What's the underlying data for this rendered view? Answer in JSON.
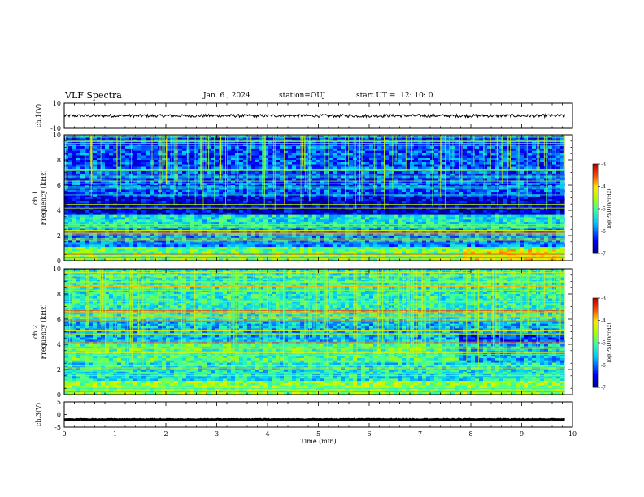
{
  "header": {
    "title": "VLF Spectra",
    "date": "Jan. 6 , 2024",
    "station": "station=OUJ",
    "start": "start UT =  12: 10: 0"
  },
  "chart_data": [
    {
      "type": "line",
      "title": "",
      "ylabel": "ch.1(V)",
      "ylim": [
        -10,
        10
      ],
      "yticks": [
        10,
        -10
      ],
      "xlim": [
        0,
        10
      ],
      "description_level": 0,
      "series": [
        {
          "values_mean": 0,
          "noise_amplitude": 1.2
        }
      ]
    },
    {
      "type": "heatmap",
      "ylabel_top": "ch.1",
      "ylabel": "Frequency (kHz)",
      "ylim": [
        0,
        10
      ],
      "yticks": [
        "0",
        "2",
        "4",
        "6",
        "8",
        "10"
      ],
      "xlim": [
        0,
        10
      ],
      "colorbar": {
        "label": "log(PSD)(V²/Hz)",
        "range": [
          -7,
          -3
        ],
        "ticks": [
          "-3",
          "-4",
          "-5",
          "-6",
          "-7"
        ]
      }
    },
    {
      "type": "heatmap",
      "ylabel_top": "ch.2",
      "ylabel": "Frequency (kHz)",
      "ylim": [
        0,
        10
      ],
      "yticks": [
        "0",
        "2",
        "4",
        "6",
        "8",
        "10"
      ],
      "xlim": [
        0,
        10
      ],
      "colorbar": {
        "label": "log(PSD)(V²/Hz)",
        "range": [
          -7,
          -3
        ],
        "ticks": [
          "-3",
          "-4",
          "-5",
          "-6",
          "-7"
        ]
      }
    },
    {
      "type": "line",
      "ylabel": "ch.3(V)",
      "ylim": [
        -5,
        5
      ],
      "yticks": [
        "5",
        "0",
        "-5"
      ],
      "xlim": [
        0,
        10
      ],
      "series": [
        {
          "values_mean": -2,
          "noise_amplitude": 0.15
        }
      ]
    }
  ],
  "xaxis": {
    "label": "Time (min)",
    "ticks": [
      "0",
      "1",
      "2",
      "3",
      "4",
      "5",
      "6",
      "7",
      "8",
      "9",
      "10"
    ],
    "data_end": 9.85
  }
}
